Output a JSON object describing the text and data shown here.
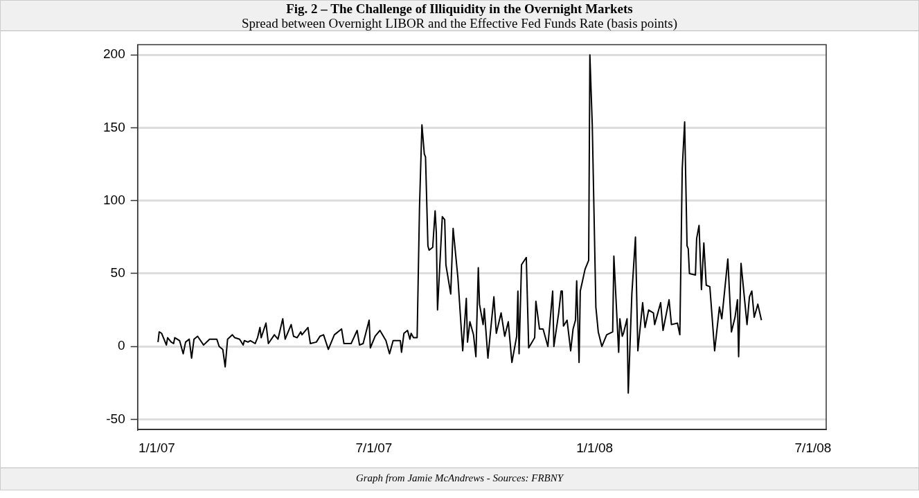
{
  "chart_data": {
    "type": "line",
    "title": "Fig. 2 – The Challenge of Illiquidity in the Overnight Markets",
    "subtitle": "Spread between Overnight LIBOR and the Effective Fed Funds Rate (basis points)",
    "annotations": [
      "Graph from Jamie McAndrews - Sources: FRBNY"
    ],
    "x": [
      "2007-01-02",
      "2007-01-03",
      "2007-01-05",
      "2007-01-07",
      "2007-01-09",
      "2007-01-10",
      "2007-01-13",
      "2007-01-15",
      "2007-01-16",
      "2007-01-20",
      "2007-01-23",
      "2007-01-25",
      "2007-01-28",
      "2007-01-30",
      "2007-02-01",
      "2007-02-04",
      "2007-02-09",
      "2007-02-14",
      "2007-02-20",
      "2007-02-22",
      "2007-02-25",
      "2007-02-27",
      "2007-03-01",
      "2007-03-05",
      "2007-03-07",
      "2007-03-11",
      "2007-03-14",
      "2007-03-15",
      "2007-03-18",
      "2007-03-20",
      "2007-03-24",
      "2007-03-26",
      "2007-03-28",
      "2007-03-29",
      "2007-04-02",
      "2007-04-04",
      "2007-04-09",
      "2007-04-12",
      "2007-04-16",
      "2007-04-18",
      "2007-04-23",
      "2007-04-25",
      "2007-04-28",
      "2007-05-01",
      "2007-05-02",
      "2007-05-07",
      "2007-05-09",
      "2007-05-14",
      "2007-05-17",
      "2007-05-20",
      "2007-05-24",
      "2007-05-29",
      "2007-06-04",
      "2007-06-06",
      "2007-06-12",
      "2007-06-17",
      "2007-06-19",
      "2007-06-22",
      "2007-06-27",
      "2007-06-28",
      "2007-07-02",
      "2007-07-06",
      "2007-07-11",
      "2007-07-14",
      "2007-07-17",
      "2007-07-23",
      "2007-07-24",
      "2007-07-26",
      "2007-07-29",
      "2007-07-31",
      "2007-08-01",
      "2007-08-03",
      "2007-08-06",
      "2007-08-08",
      "2007-08-10",
      "2007-08-12",
      "2007-08-13",
      "2007-08-15",
      "2007-08-16",
      "2007-08-19",
      "2007-08-21",
      "2007-08-22",
      "2007-08-23",
      "2007-08-27",
      "2007-08-29",
      "2007-08-30",
      "2007-09-03",
      "2007-09-05",
      "2007-09-09",
      "2007-09-13",
      "2007-09-16",
      "2007-09-17",
      "2007-09-19",
      "2007-09-22",
      "2007-09-24",
      "2007-09-26",
      "2007-09-27",
      "2007-09-30",
      "2007-10-01",
      "2007-10-04",
      "2007-10-09",
      "2007-10-11",
      "2007-10-15",
      "2007-10-18",
      "2007-10-21",
      "2007-10-24",
      "2007-10-28",
      "2007-10-29",
      "2007-10-30",
      "2007-11-01",
      "2007-11-05",
      "2007-11-07",
      "2007-11-12",
      "2007-11-13",
      "2007-11-16",
      "2007-11-19",
      "2007-11-23",
      "2007-11-27",
      "2007-11-28",
      "2007-12-02",
      "2007-12-04",
      "2007-12-05",
      "2007-12-06",
      "2007-12-09",
      "2007-12-12",
      "2007-12-14",
      "2007-12-16",
      "2007-12-17",
      "2007-12-19",
      "2007-12-20",
      "2007-12-24",
      "2007-12-27",
      "2007-12-28",
      "2007-12-30",
      "2008-01-02",
      "2008-01-04",
      "2008-01-07",
      "2008-01-11",
      "2008-01-16",
      "2008-01-17",
      "2008-01-21",
      "2008-01-22",
      "2008-01-24",
      "2008-01-25",
      "2008-01-28",
      "2008-01-29",
      "2008-02-01",
      "2008-02-04",
      "2008-02-06",
      "2008-02-10",
      "2008-02-12",
      "2008-02-15",
      "2008-02-19",
      "2008-02-20",
      "2008-02-25",
      "2008-02-27",
      "2008-03-03",
      "2008-03-05",
      "2008-03-10",
      "2008-03-12",
      "2008-03-14",
      "2008-03-16",
      "2008-03-18",
      "2008-03-19",
      "2008-03-20",
      "2008-03-25",
      "2008-03-26",
      "2008-03-28",
      "2008-03-30",
      "2008-04-01",
      "2008-04-03",
      "2008-04-06",
      "2008-04-10",
      "2008-04-14",
      "2008-04-16",
      "2008-04-21",
      "2008-04-24",
      "2008-04-27",
      "2008-04-29",
      "2008-04-30",
      "2008-05-02",
      "2008-05-07",
      "2008-05-09",
      "2008-05-11",
      "2008-05-13",
      "2008-05-16",
      "2008-05-19"
    ],
    "series": [
      {
        "color": "#000000",
        "values": [
          3,
          10,
          9,
          5,
          1,
          6,
          3,
          2,
          6,
          4,
          -5,
          3,
          5,
          -8,
          5,
          7,
          1,
          5,
          5,
          0,
          -2,
          -14,
          5,
          8,
          6,
          5,
          1,
          4,
          3,
          4,
          2,
          6,
          13,
          6,
          16,
          2,
          8,
          5,
          19,
          5,
          15,
          7,
          6,
          10,
          8,
          13,
          2,
          3,
          7,
          8,
          -2,
          8,
          12,
          2,
          2,
          11,
          1,
          2,
          18,
          -1,
          7,
          11,
          4,
          -5,
          4,
          4,
          -4,
          9,
          11,
          5,
          9,
          6,
          6,
          96,
          152,
          132,
          130,
          69,
          66,
          68,
          93,
          78,
          25,
          89,
          87,
          56,
          36,
          81,
          47,
          -3,
          33,
          3,
          17,
          8,
          -7,
          54,
          29,
          15,
          26,
          -8,
          34,
          9,
          23,
          7,
          17,
          -11,
          7,
          38,
          -5,
          56,
          61,
          -1,
          6,
          31,
          12,
          12,
          0,
          38,
          0,
          23,
          38,
          38,
          14,
          18,
          -3,
          12,
          18,
          45,
          -11,
          38,
          53,
          59,
          200,
          152,
          27,
          10,
          0,
          8,
          10,
          62,
          -4,
          19,
          7,
          9,
          19,
          -32,
          36,
          75,
          -3,
          30,
          13,
          25,
          23,
          15,
          30,
          11,
          32,
          15,
          16,
          8,
          122,
          154,
          69,
          67,
          50,
          49,
          74,
          83,
          39,
          71,
          42,
          41,
          -3,
          27,
          19,
          60,
          10,
          20,
          32,
          -7,
          57,
          15,
          34,
          38,
          20,
          29,
          18
        ]
      }
    ],
    "xlim": [
      "2006-12-16",
      "2008-07-12"
    ],
    "xticks": [
      {
        "value": "2007-01-01",
        "label": "1/1/07"
      },
      {
        "value": "2007-07-01",
        "label": "7/1/07"
      },
      {
        "value": "2008-01-01",
        "label": "1/1/08"
      },
      {
        "value": "2008-07-01",
        "label": "7/1/08"
      }
    ],
    "ylim": [
      -57,
      207
    ],
    "yticks": [
      -50,
      0,
      50,
      100,
      150,
      200
    ],
    "grid": "y",
    "legend": false,
    "marker": "none",
    "line_style": "solid"
  }
}
